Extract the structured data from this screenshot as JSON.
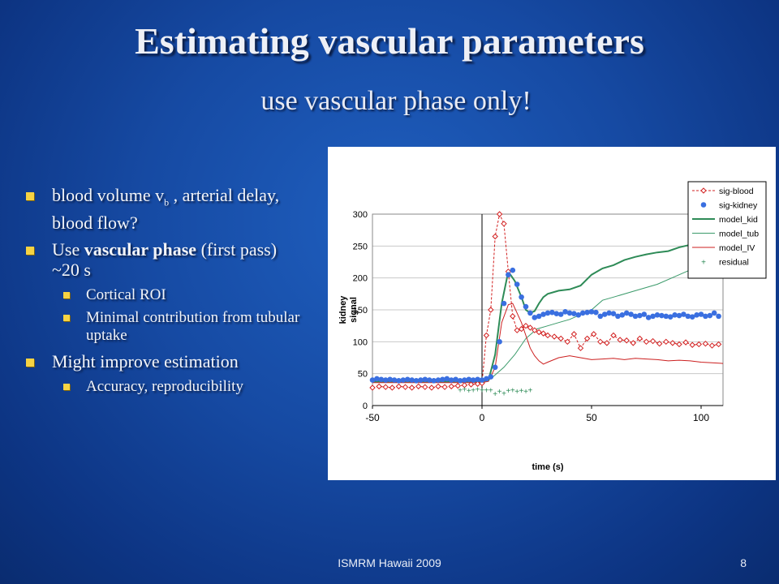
{
  "slide": {
    "title": "Estimating vascular parameters",
    "subtitle": "use vascular phase only!",
    "footer_center": "ISMRM Hawaii 2009",
    "page_number": "8"
  },
  "bullets": {
    "b1_pre": "blood volume v",
    "b1_sub": "b",
    "b1_post": " , arterial delay, blood flow?",
    "b2_pre": "Use ",
    "b2_bold": "vascular phase",
    "b2_post": " (first pass) ~20 s",
    "b2_s1": "Cortical ROI",
    "b2_s2": "Minimal contribution from tubular uptake",
    "b3": "Might improve estimation",
    "b3_s1": "Accuracy, reproducibility"
  },
  "colors": {
    "bullet": "#f6d343",
    "sig_blood": "#d22020",
    "sig_kidney": "#3a6fe0",
    "model_kid": "#2e8b57",
    "model_tub": "#3a9a6a",
    "model_IV": "#cc1f1f",
    "residual": "#2e8b57"
  },
  "chart_data": {
    "type": "line",
    "xlabel": "time (s)",
    "ylabel": "kidney signal",
    "xlim": [
      -50,
      110
    ],
    "ylim": [
      0,
      300
    ],
    "xticks": [
      -50,
      0,
      50,
      100
    ],
    "yticks": [
      0,
      50,
      100,
      150,
      200,
      250,
      300
    ],
    "grid": "horizontal",
    "legend_position": "top-right",
    "series": [
      {
        "name": "sig-blood",
        "style": "dashed-diamond",
        "x": [
          -50,
          -47,
          -44,
          -41,
          -38,
          -35,
          -32,
          -29,
          -26,
          -23,
          -20,
          -17,
          -14,
          -11,
          -8,
          -5,
          -2,
          0,
          2,
          4,
          6,
          8,
          10,
          12,
          14,
          16,
          18,
          20,
          22,
          24,
          26,
          28,
          30,
          33,
          36,
          39,
          42,
          45,
          48,
          51,
          54,
          57,
          60,
          63,
          66,
          69,
          72,
          75,
          78,
          81,
          84,
          87,
          90,
          93,
          96,
          99,
          102,
          105,
          108
        ],
        "y": [
          28,
          30,
          29,
          28,
          30,
          29,
          28,
          30,
          29,
          28,
          30,
          29,
          30,
          31,
          32,
          33,
          34,
          35,
          110,
          150,
          265,
          300,
          285,
          210,
          140,
          118,
          120,
          125,
          122,
          118,
          115,
          113,
          110,
          108,
          105,
          100,
          112,
          90,
          105,
          112,
          100,
          98,
          110,
          103,
          102,
          98,
          105,
          100,
          101,
          97,
          100,
          98,
          96,
          99,
          95,
          96,
          97,
          94,
          96
        ]
      },
      {
        "name": "sig-kidney",
        "style": "circle",
        "x": [
          -50,
          -48,
          -46,
          -44,
          -42,
          -40,
          -38,
          -36,
          -34,
          -32,
          -30,
          -28,
          -26,
          -24,
          -22,
          -20,
          -18,
          -16,
          -14,
          -12,
          -10,
          -8,
          -6,
          -4,
          -2,
          0,
          2,
          4,
          6,
          8,
          10,
          12,
          14,
          16,
          18,
          20,
          22,
          24,
          26,
          28,
          30,
          32,
          34,
          36,
          38,
          40,
          42,
          44,
          46,
          48,
          50,
          52,
          54,
          56,
          58,
          60,
          62,
          64,
          66,
          68,
          70,
          72,
          74,
          76,
          78,
          80,
          82,
          84,
          86,
          88,
          90,
          92,
          94,
          96,
          98,
          100,
          102,
          104,
          106,
          108
        ],
        "y": [
          40,
          42,
          41,
          40,
          41,
          40,
          39,
          40,
          41,
          40,
          39,
          40,
          41,
          40,
          39,
          40,
          41,
          42,
          40,
          41,
          39,
          40,
          41,
          40,
          41,
          40,
          42,
          45,
          60,
          100,
          160,
          205,
          212,
          190,
          170,
          155,
          145,
          138,
          140,
          143,
          145,
          146,
          144,
          143,
          147,
          145,
          144,
          142,
          145,
          146,
          147,
          146,
          140,
          143,
          145,
          144,
          140,
          142,
          145,
          143,
          140,
          141,
          143,
          138,
          140,
          142,
          141,
          140,
          139,
          142,
          141,
          143,
          140,
          139,
          142,
          143,
          140,
          141,
          145,
          140
        ]
      },
      {
        "name": "model_kid",
        "style": "line",
        "x": [
          -50,
          -20,
          0,
          3,
          6,
          9,
          12,
          15,
          18,
          20,
          22,
          24,
          26,
          28,
          30,
          35,
          40,
          45,
          50,
          55,
          60,
          65,
          70,
          75,
          80,
          85,
          90,
          95,
          100,
          105,
          110
        ],
        "y": [
          38,
          38,
          38,
          40,
          80,
          160,
          210,
          195,
          170,
          150,
          145,
          148,
          160,
          170,
          175,
          180,
          182,
          188,
          205,
          215,
          220,
          228,
          233,
          237,
          240,
          242,
          248,
          252,
          256,
          260,
          263
        ]
      },
      {
        "name": "model_tub",
        "style": "thin-line",
        "x": [
          -50,
          -20,
          0,
          5,
          10,
          15,
          20,
          25,
          30,
          35,
          40,
          50,
          55,
          60,
          70,
          80,
          90,
          100,
          110
        ],
        "y": [
          37,
          37,
          37,
          45,
          60,
          80,
          105,
          120,
          125,
          130,
          135,
          150,
          165,
          170,
          180,
          190,
          205,
          220,
          238
        ]
      },
      {
        "name": "model_IV",
        "style": "thin-line",
        "x": [
          -50,
          -20,
          0,
          3,
          6,
          9,
          12,
          14,
          16,
          18,
          20,
          22,
          24,
          26,
          28,
          30,
          35,
          40,
          45,
          50,
          55,
          60,
          65,
          70,
          75,
          80,
          85,
          90,
          95,
          100,
          105,
          110
        ],
        "y": [
          36,
          36,
          36,
          38,
          60,
          130,
          158,
          160,
          145,
          130,
          110,
          90,
          78,
          70,
          65,
          68,
          75,
          78,
          75,
          72,
          73,
          74,
          72,
          74,
          73,
          72,
          70,
          71,
          70,
          68,
          67,
          66
        ]
      },
      {
        "name": "residual",
        "style": "plus",
        "x": [
          -10,
          -8,
          -6,
          -4,
          -2,
          0,
          2,
          4,
          6,
          8,
          10,
          12,
          14,
          16,
          18,
          20,
          22
        ],
        "y": [
          25,
          26,
          24,
          25,
          26,
          25,
          25,
          25,
          19,
          23,
          20,
          24,
          25,
          23,
          24,
          23,
          25
        ]
      }
    ]
  }
}
